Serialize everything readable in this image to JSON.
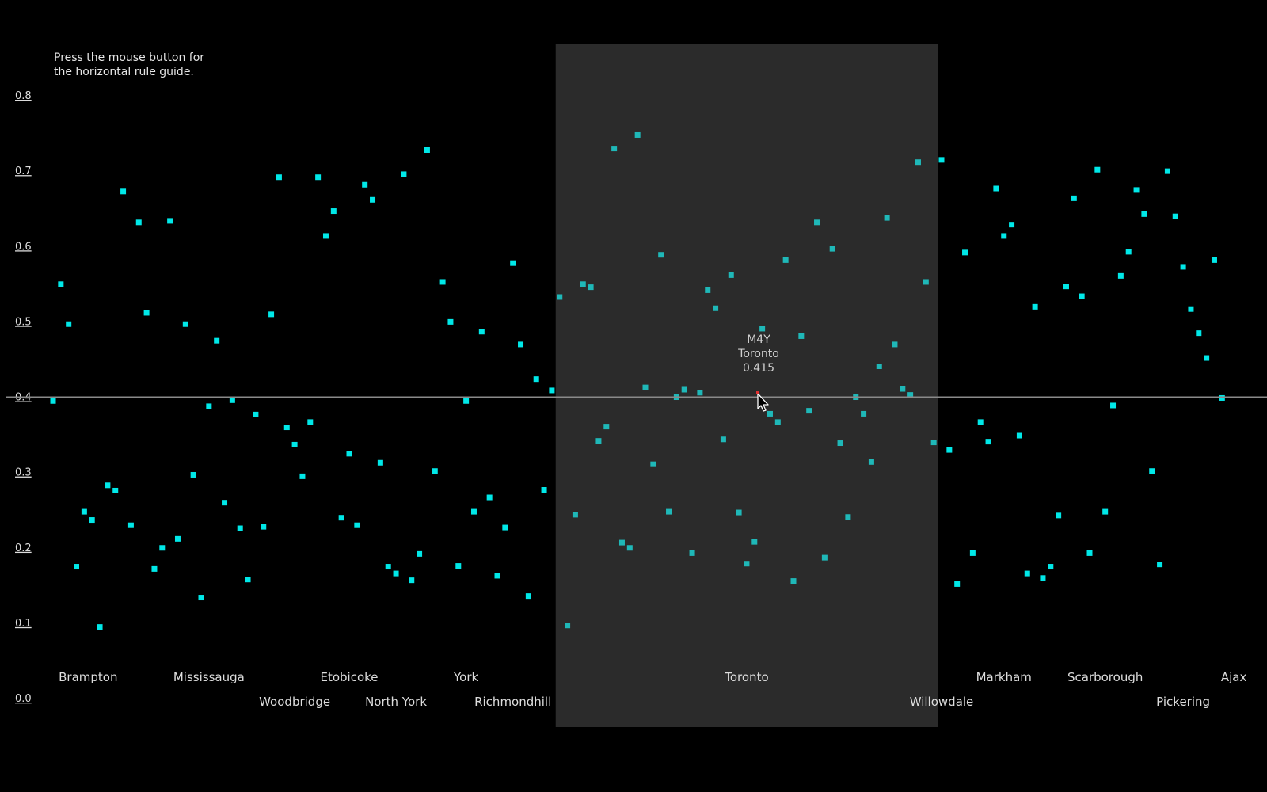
{
  "instructions": {
    "line1": "Press the mouse button for",
    "line2": "the horizontal rule guide."
  },
  "colors": {
    "background": "#000000",
    "point": "#00e8e8",
    "point_in_highlight": "#1fb8b8",
    "highlight": "#2b2b2b",
    "rule": "#8a8a8a"
  },
  "tooltip": {
    "code": "M4Y",
    "city": "Toronto",
    "value": "0.415"
  },
  "chart_data": {
    "type": "scatter",
    "title": "",
    "xlabel": "",
    "ylabel": "",
    "ylim": [
      0,
      0.8
    ],
    "y_ticks": [
      "0.0",
      "0.1",
      "0.2",
      "0.3",
      "0.4",
      "0.5",
      "0.6",
      "0.7",
      "0.8"
    ],
    "x_range": [
      0,
      152
    ],
    "grid": false,
    "horizontal_rule": 0.4,
    "highlight_range": [
      65,
      114
    ],
    "categories": [
      {
        "name": "Brampton",
        "x": 4.5,
        "row": 1
      },
      {
        "name": "Mississauga",
        "x": 20,
        "row": 1
      },
      {
        "name": "Woodbridge",
        "x": 31,
        "row": 2
      },
      {
        "name": "Etobicoke",
        "x": 38,
        "row": 1
      },
      {
        "name": "North York",
        "x": 44,
        "row": 2
      },
      {
        "name": "York",
        "x": 53,
        "row": 1
      },
      {
        "name": "Richmondhill",
        "x": 59,
        "row": 2
      },
      {
        "name": "Toronto",
        "x": 89,
        "row": 1
      },
      {
        "name": "Willowdale",
        "x": 114,
        "row": 2
      },
      {
        "name": "Markham",
        "x": 122,
        "row": 1
      },
      {
        "name": "Scarborough",
        "x": 135,
        "row": 1
      },
      {
        "name": "Pickering",
        "x": 145,
        "row": 2
      },
      {
        "name": "Ajax",
        "x": 151.5,
        "row": 1
      }
    ],
    "points": [
      [
        0,
        0.395
      ],
      [
        1,
        0.55
      ],
      [
        2,
        0.497
      ],
      [
        3,
        0.175
      ],
      [
        4,
        0.248
      ],
      [
        5,
        0.237
      ],
      [
        6,
        0.095
      ],
      [
        7,
        0.283
      ],
      [
        8,
        0.276
      ],
      [
        9,
        0.673
      ],
      [
        10,
        0.23
      ],
      [
        11,
        0.632
      ],
      [
        12,
        0.512
      ],
      [
        13,
        0.172
      ],
      [
        14,
        0.2
      ],
      [
        15,
        0.634
      ],
      [
        16,
        0.212
      ],
      [
        17,
        0.497
      ],
      [
        18,
        0.297
      ],
      [
        19,
        0.134
      ],
      [
        20,
        0.388
      ],
      [
        21,
        0.475
      ],
      [
        22,
        0.26
      ],
      [
        23,
        0.396
      ],
      [
        24,
        0.226
      ],
      [
        25,
        0.158
      ],
      [
        26,
        0.377
      ],
      [
        27,
        0.228
      ],
      [
        28,
        0.51
      ],
      [
        29,
        0.692
      ],
      [
        30,
        0.36
      ],
      [
        31,
        0.337
      ],
      [
        32,
        0.295
      ],
      [
        33,
        0.367
      ],
      [
        34,
        0.692
      ],
      [
        35,
        0.614
      ],
      [
        36,
        0.647
      ],
      [
        37,
        0.24
      ],
      [
        38,
        0.325
      ],
      [
        39,
        0.23
      ],
      [
        40,
        0.682
      ],
      [
        41,
        0.662
      ],
      [
        42,
        0.313
      ],
      [
        43,
        0.175
      ],
      [
        44,
        0.166
      ],
      [
        45,
        0.696
      ],
      [
        46,
        0.157
      ],
      [
        47,
        0.192
      ],
      [
        48,
        0.728
      ],
      [
        49,
        0.302
      ],
      [
        50,
        0.553
      ],
      [
        51,
        0.5
      ],
      [
        52,
        0.176
      ],
      [
        53,
        0.395
      ],
      [
        54,
        0.248
      ],
      [
        55,
        0.487
      ],
      [
        56,
        0.267
      ],
      [
        57,
        0.163
      ],
      [
        58,
        0.227
      ],
      [
        59,
        0.578
      ],
      [
        60,
        0.47
      ],
      [
        61,
        0.136
      ],
      [
        62,
        0.424
      ],
      [
        63,
        0.277
      ],
      [
        64,
        0.409
      ],
      [
        65,
        0.533
      ],
      [
        66,
        0.097
      ],
      [
        67,
        0.244
      ],
      [
        68,
        0.55
      ],
      [
        69,
        0.546
      ],
      [
        70,
        0.342
      ],
      [
        71,
        0.361
      ],
      [
        72,
        0.73
      ],
      [
        73,
        0.207
      ],
      [
        74,
        0.2
      ],
      [
        75,
        0.748
      ],
      [
        76,
        0.413
      ],
      [
        77,
        0.311
      ],
      [
        78,
        0.589
      ],
      [
        79,
        0.248
      ],
      [
        80,
        0.4
      ],
      [
        81,
        0.41
      ],
      [
        82,
        0.193
      ],
      [
        83,
        0.406
      ],
      [
        84,
        0.542
      ],
      [
        85,
        0.518
      ],
      [
        86,
        0.344
      ],
      [
        87,
        0.562
      ],
      [
        88,
        0.247
      ],
      [
        89,
        0.179
      ],
      [
        90,
        0.208
      ],
      [
        91,
        0.491
      ],
      [
        92,
        0.378
      ],
      [
        93,
        0.367
      ],
      [
        94,
        0.582
      ],
      [
        95,
        0.156
      ],
      [
        96,
        0.481
      ],
      [
        97,
        0.382
      ],
      [
        98,
        0.632
      ],
      [
        99,
        0.187
      ],
      [
        100,
        0.597
      ],
      [
        101,
        0.339
      ],
      [
        102,
        0.241
      ],
      [
        103,
        0.4
      ],
      [
        104,
        0.378
      ],
      [
        105,
        0.314
      ],
      [
        106,
        0.441
      ],
      [
        107,
        0.638
      ],
      [
        108,
        0.47
      ],
      [
        109,
        0.411
      ],
      [
        110,
        0.403
      ],
      [
        111,
        0.712
      ],
      [
        112,
        0.553
      ],
      [
        113,
        0.34
      ],
      [
        114,
        0.715
      ],
      [
        115,
        0.33
      ],
      [
        116,
        0.152
      ],
      [
        117,
        0.592
      ],
      [
        118,
        0.193
      ],
      [
        119,
        0.367
      ],
      [
        120,
        0.341
      ],
      [
        121,
        0.677
      ],
      [
        122,
        0.614
      ],
      [
        123,
        0.629
      ],
      [
        124,
        0.349
      ],
      [
        125,
        0.166
      ],
      [
        126,
        0.52
      ],
      [
        127,
        0.16
      ],
      [
        128,
        0.175
      ],
      [
        129,
        0.243
      ],
      [
        130,
        0.547
      ],
      [
        131,
        0.664
      ],
      [
        132,
        0.534
      ],
      [
        133,
        0.193
      ],
      [
        134,
        0.702
      ],
      [
        135,
        0.248
      ],
      [
        136,
        0.389
      ],
      [
        137,
        0.561
      ],
      [
        138,
        0.593
      ],
      [
        139,
        0.675
      ],
      [
        140,
        0.643
      ],
      [
        141,
        0.302
      ],
      [
        142,
        0.178
      ],
      [
        143,
        0.7
      ],
      [
        144,
        0.64
      ],
      [
        145,
        0.573
      ],
      [
        146,
        0.517
      ],
      [
        147,
        0.485
      ],
      [
        148,
        0.452
      ],
      [
        149,
        0.582
      ],
      [
        150,
        0.399
      ]
    ]
  }
}
